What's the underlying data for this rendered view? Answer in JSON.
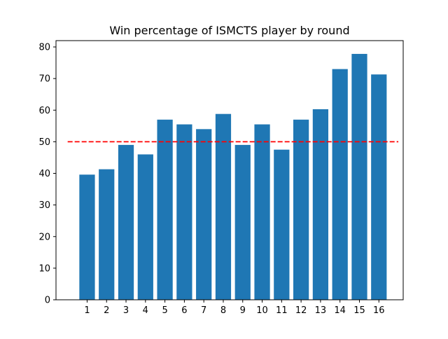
{
  "chart_data": {
    "type": "bar",
    "title": "Win percentage of ISMCTS player by round",
    "xlabel": "",
    "ylabel": "",
    "categories": [
      "1",
      "2",
      "3",
      "4",
      "5",
      "6",
      "7",
      "8",
      "9",
      "10",
      "11",
      "12",
      "13",
      "14",
      "15",
      "16"
    ],
    "values": [
      39.6,
      41.3,
      49.0,
      46.0,
      57.0,
      55.5,
      54.0,
      58.8,
      49.0,
      55.5,
      47.5,
      57.0,
      60.3,
      73.0,
      77.8,
      71.3
    ],
    "ylim": [
      0,
      82
    ],
    "y_ticks": [
      0,
      10,
      20,
      30,
      40,
      50,
      60,
      70,
      80
    ],
    "reference_line": {
      "y": 50,
      "style": "dashed",
      "color": "#ff0000"
    },
    "bar_color": "#1f77b4",
    "grid": false,
    "legend": "none"
  }
}
